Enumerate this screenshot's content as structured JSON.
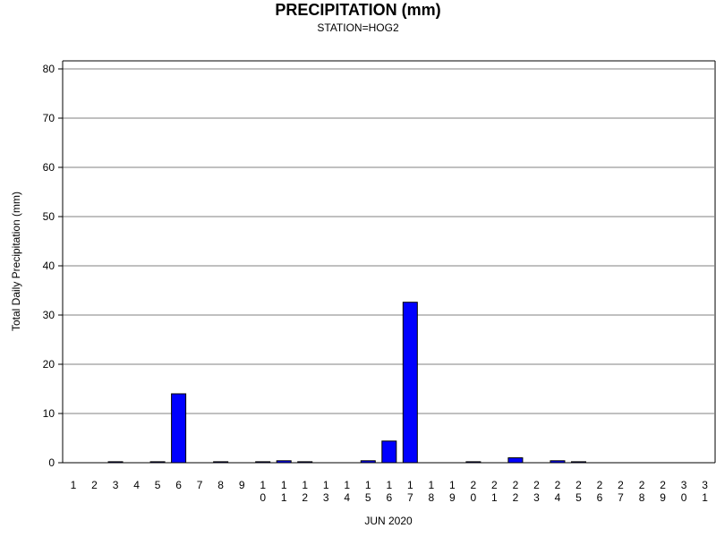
{
  "chart_data": {
    "type": "bar",
    "title": "PRECIPITATION (mm)",
    "subtitle": "STATION=HOG2",
    "xlabel": "JUN 2020",
    "ylabel": "Total Daily Precipitation (mm)",
    "ylim": [
      0,
      80
    ],
    "yticks": [
      "0",
      "10",
      "20",
      "30",
      "40",
      "50",
      "60",
      "70",
      "80"
    ],
    "grid": true,
    "bar_color": "#0000ff",
    "categories": [
      "1",
      "2",
      "3",
      "4",
      "5",
      "6",
      "7",
      "8",
      "9",
      "10",
      "11",
      "12",
      "13",
      "14",
      "15",
      "16",
      "17",
      "18",
      "19",
      "20",
      "21",
      "22",
      "23",
      "24",
      "25",
      "26",
      "27",
      "28",
      "29",
      "30",
      "31"
    ],
    "values": [
      0,
      0,
      0.2,
      0,
      0.2,
      14.0,
      0,
      0.2,
      0,
      0.2,
      0.4,
      0.2,
      0,
      0,
      0.4,
      4.4,
      32.6,
      0,
      0,
      0.2,
      0,
      1.0,
      0,
      0.4,
      0.2,
      0,
      0,
      0,
      0,
      0,
      0
    ]
  }
}
